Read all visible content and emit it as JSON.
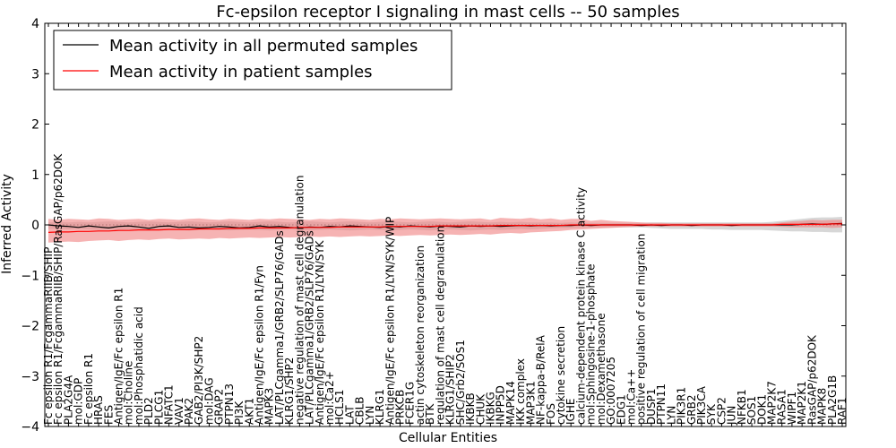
{
  "chart_data": {
    "type": "line",
    "title": "Fc-epsilon receptor I signaling in mast cells -- 50 samples",
    "xlabel": "Cellular Entities",
    "ylabel": "Inferred Activity",
    "ylim": [
      -4,
      4
    ],
    "yticks": [
      "−4",
      "−3",
      "−2",
      "−1",
      "0",
      "1",
      "2",
      "3",
      "4"
    ],
    "grid": false,
    "legend_position": "top-left",
    "colors": {
      "permuted": "#000000",
      "patient": "#ff0000",
      "patient_band": "#f08080",
      "permuted_band": "#b0b0b0"
    },
    "categories": [
      "Fc epsilon R1/FcgammaRIIB/SHIP",
      "Fc epsilon R1/FcgammaRIIB/SHIP/RasGAP/p62DOK",
      "PLA2G4A",
      "mol:GDP",
      "Fc epsilon R1",
      "HRAS",
      "FES",
      "Antigen/IgE/Fc epsilon R1",
      "mol:Choline",
      "mol:Phosphatidic acid",
      "PLD2",
      "PLCG1",
      "NFATC1",
      "VAV1",
      "PAK2",
      "GAB2/PI3K/SHP2",
      "mol:DAG",
      "GRAP2",
      "PTPN13",
      "PI3K",
      "AKT1",
      "Antigen/IgE/Fc epsilon R1/Fyn",
      "MAPK3",
      "LAT/PLCgamma1/GRB2/SLP76/GADs",
      "KLRG1/SHP2",
      "negative regulation of mast cell degranulation",
      "LAT/PLCgamma1/GRB2/SLP76/GADs",
      "Antigen/IgE/Fc epsilon R1/LYN/SYK",
      "mol:Ca2+",
      "HCLS1",
      "LAT",
      "CBLB",
      "LYN",
      "KLRG1",
      "Antigen/IgE/Fc epsilon R1/LYN/SYK/WIP",
      "PRKCB",
      "FCER1G",
      "actin cytoskeleton reorganization",
      "BTK",
      "regulation of mast cell degranulation",
      "KLRG1/SHIP2",
      "SHC/Grb2/SOS1",
      "IKBKB",
      "CHUK",
      "IKBKG",
      "INPP5D",
      "MAPK14",
      "IKK complex",
      "MAP3K1",
      "NF-kappa-B/RelA",
      "FOS",
      "cytokine secretion",
      "IGHE",
      "calcium-dependent protein kinase C activity",
      "mol:Sphingosine-1-phosphate",
      "mol:Dexamethasone",
      "GO:0007205",
      "EDG1",
      "mol:Ca++",
      "positive regulation of cell migration",
      "DUSP1",
      "PTPN11",
      "LYN",
      "PIK3R1",
      "GRB2",
      "PIK3CA",
      "SYK",
      "CSP2",
      "JUN",
      "NFKB1",
      "SOS1",
      "DOK1",
      "MAP2K7",
      "RASA1",
      "WIPF1",
      "MAP2K1",
      "RasGAP/p62DOK",
      "MAPK8",
      "PLA2G1B",
      "RAF1"
    ],
    "series": [
      {
        "name": "Mean activity in all permuted samples",
        "color": "#000000",
        "values": [
          0.0,
          -0.02,
          -0.03,
          -0.05,
          -0.02,
          -0.04,
          -0.06,
          -0.03,
          -0.02,
          -0.04,
          -0.07,
          -0.03,
          -0.02,
          -0.05,
          -0.04,
          -0.06,
          -0.05,
          -0.03,
          -0.04,
          -0.06,
          -0.05,
          -0.02,
          -0.04,
          -0.03,
          -0.05,
          -0.06,
          -0.04,
          -0.05,
          -0.03,
          -0.04,
          -0.02,
          -0.03,
          -0.04,
          -0.05,
          -0.03,
          -0.04,
          -0.02,
          -0.03,
          -0.04,
          -0.02,
          -0.03,
          -0.04,
          -0.02,
          -0.03,
          -0.02,
          -0.03,
          -0.02,
          -0.01,
          -0.02,
          -0.01,
          -0.02,
          -0.01,
          -0.01,
          0.0,
          -0.01,
          0.0,
          0.0,
          0.0,
          0.0,
          -0.01,
          0.0,
          -0.01,
          0.0,
          0.0,
          -0.01,
          0.0,
          0.0,
          0.0,
          -0.01,
          0.0,
          0.0,
          0.0,
          0.0,
          0.0,
          0.0,
          0.01,
          0.02,
          0.01,
          0.02,
          0.03
        ]
      },
      {
        "name": "Mean activity in patient samples",
        "color": "#ff0000",
        "values": [
          -0.15,
          -0.14,
          -0.14,
          -0.13,
          -0.13,
          -0.12,
          -0.12,
          -0.11,
          -0.11,
          -0.1,
          -0.1,
          -0.1,
          -0.09,
          -0.09,
          -0.09,
          -0.08,
          -0.08,
          -0.08,
          -0.07,
          -0.07,
          -0.07,
          -0.06,
          -0.06,
          -0.06,
          -0.06,
          -0.05,
          -0.05,
          -0.05,
          -0.05,
          -0.04,
          -0.04,
          -0.04,
          -0.04,
          -0.04,
          -0.03,
          -0.03,
          -0.03,
          -0.03,
          -0.03,
          -0.02,
          -0.02,
          -0.02,
          -0.02,
          -0.02,
          -0.02,
          -0.01,
          -0.01,
          -0.01,
          -0.01,
          -0.01,
          -0.01,
          -0.01,
          0.0,
          0.0,
          0.0,
          0.0,
          0.0,
          0.0,
          0.0,
          0.0,
          0.0,
          0.0,
          0.0,
          0.0,
          0.0,
          0.0,
          0.0,
          0.0,
          0.0,
          0.0,
          0.0,
          0.0,
          0.0,
          0.01,
          0.01,
          0.01,
          0.01,
          0.01,
          0.02,
          0.02
        ]
      }
    ],
    "patient_band": {
      "upper": [
        0.12,
        0.1,
        0.12,
        0.11,
        0.1,
        0.13,
        0.12,
        0.1,
        0.11,
        0.12,
        0.1,
        0.12,
        0.11,
        0.1,
        0.12,
        0.13,
        0.11,
        0.1,
        0.12,
        0.11,
        0.1,
        0.12,
        0.11,
        0.13,
        0.12,
        0.11,
        0.1,
        0.12,
        0.11,
        0.13,
        0.12,
        0.11,
        0.1,
        0.12,
        0.11,
        0.13,
        0.12,
        0.11,
        0.12,
        0.13,
        0.12,
        0.11,
        0.12,
        0.13,
        0.1,
        0.14,
        0.13,
        0.12,
        0.14,
        0.11,
        0.13,
        0.1,
        0.12,
        0.12,
        0.08,
        0.1,
        0.08,
        0.07,
        0.06,
        0.05,
        0.04,
        0.04,
        0.03,
        0.03,
        0.03,
        0.03,
        0.03,
        0.03,
        0.03,
        0.03,
        0.03,
        0.03,
        0.03,
        0.05,
        0.07,
        0.08,
        0.1,
        0.09,
        0.1,
        0.1
      ],
      "lower": [
        -0.35,
        -0.34,
        -0.33,
        -0.34,
        -0.32,
        -0.31,
        -0.3,
        -0.32,
        -0.3,
        -0.29,
        -0.3,
        -0.28,
        -0.27,
        -0.29,
        -0.28,
        -0.27,
        -0.28,
        -0.26,
        -0.27,
        -0.26,
        -0.25,
        -0.26,
        -0.25,
        -0.24,
        -0.25,
        -0.24,
        -0.23,
        -0.24,
        -0.23,
        -0.24,
        -0.23,
        -0.22,
        -0.23,
        -0.22,
        -0.21,
        -0.22,
        -0.21,
        -0.2,
        -0.21,
        -0.2,
        -0.19,
        -0.2,
        -0.19,
        -0.18,
        -0.19,
        -0.17,
        -0.16,
        -0.17,
        -0.15,
        -0.14,
        -0.13,
        -0.12,
        -0.1,
        -0.09,
        -0.08,
        -0.07,
        -0.06,
        -0.05,
        -0.04,
        -0.03,
        -0.03,
        -0.03,
        -0.03,
        -0.03,
        -0.03,
        -0.03,
        -0.03,
        -0.03,
        -0.03,
        -0.03,
        -0.03,
        -0.03,
        -0.03,
        -0.04,
        -0.05,
        -0.05,
        -0.05,
        -0.05,
        -0.06,
        -0.05
      ]
    },
    "permuted_band": {
      "upper": [
        0.05,
        0.06,
        0.05,
        0.06,
        0.05,
        0.06,
        0.07,
        0.06,
        0.05,
        0.06,
        0.07,
        0.06,
        0.05,
        0.06,
        0.07,
        0.06,
        0.05,
        0.06,
        0.07,
        0.06,
        0.05,
        0.06,
        0.07,
        0.06,
        0.05,
        0.06,
        0.07,
        0.06,
        0.05,
        0.06,
        0.07,
        0.06,
        0.05,
        0.06,
        0.07,
        0.06,
        0.05,
        0.06,
        0.07,
        0.06,
        0.05,
        0.06,
        0.07,
        0.06,
        0.05,
        0.06,
        0.05,
        0.06,
        0.05,
        0.05,
        0.05,
        0.04,
        0.05,
        0.04,
        0.04,
        0.04,
        0.04,
        0.04,
        0.04,
        0.04,
        0.05,
        0.05,
        0.05,
        0.05,
        0.05,
        0.05,
        0.05,
        0.05,
        0.05,
        0.05,
        0.05,
        0.05,
        0.06,
        0.08,
        0.1,
        0.12,
        0.14,
        0.15,
        0.15,
        0.16
      ],
      "lower": [
        -0.08,
        -0.08,
        -0.09,
        -0.08,
        -0.09,
        -0.1,
        -0.09,
        -0.1,
        -0.09,
        -0.1,
        -0.11,
        -0.1,
        -0.09,
        -0.1,
        -0.11,
        -0.1,
        -0.09,
        -0.1,
        -0.11,
        -0.1,
        -0.09,
        -0.1,
        -0.11,
        -0.1,
        -0.09,
        -0.1,
        -0.11,
        -0.1,
        -0.09,
        -0.1,
        -0.11,
        -0.1,
        -0.09,
        -0.1,
        -0.11,
        -0.1,
        -0.09,
        -0.1,
        -0.11,
        -0.1,
        -0.09,
        -0.1,
        -0.11,
        -0.1,
        -0.09,
        -0.1,
        -0.09,
        -0.08,
        -0.09,
        -0.08,
        -0.07,
        -0.06,
        -0.06,
        -0.05,
        -0.05,
        -0.05,
        -0.05,
        -0.05,
        -0.05,
        -0.05,
        -0.06,
        -0.07,
        -0.08,
        -0.08,
        -0.08,
        -0.08,
        -0.09,
        -0.09,
        -0.1,
        -0.1,
        -0.1,
        -0.1,
        -0.11,
        -0.12,
        -0.13,
        -0.13,
        -0.14,
        -0.14,
        -0.15,
        -0.15
      ]
    }
  }
}
